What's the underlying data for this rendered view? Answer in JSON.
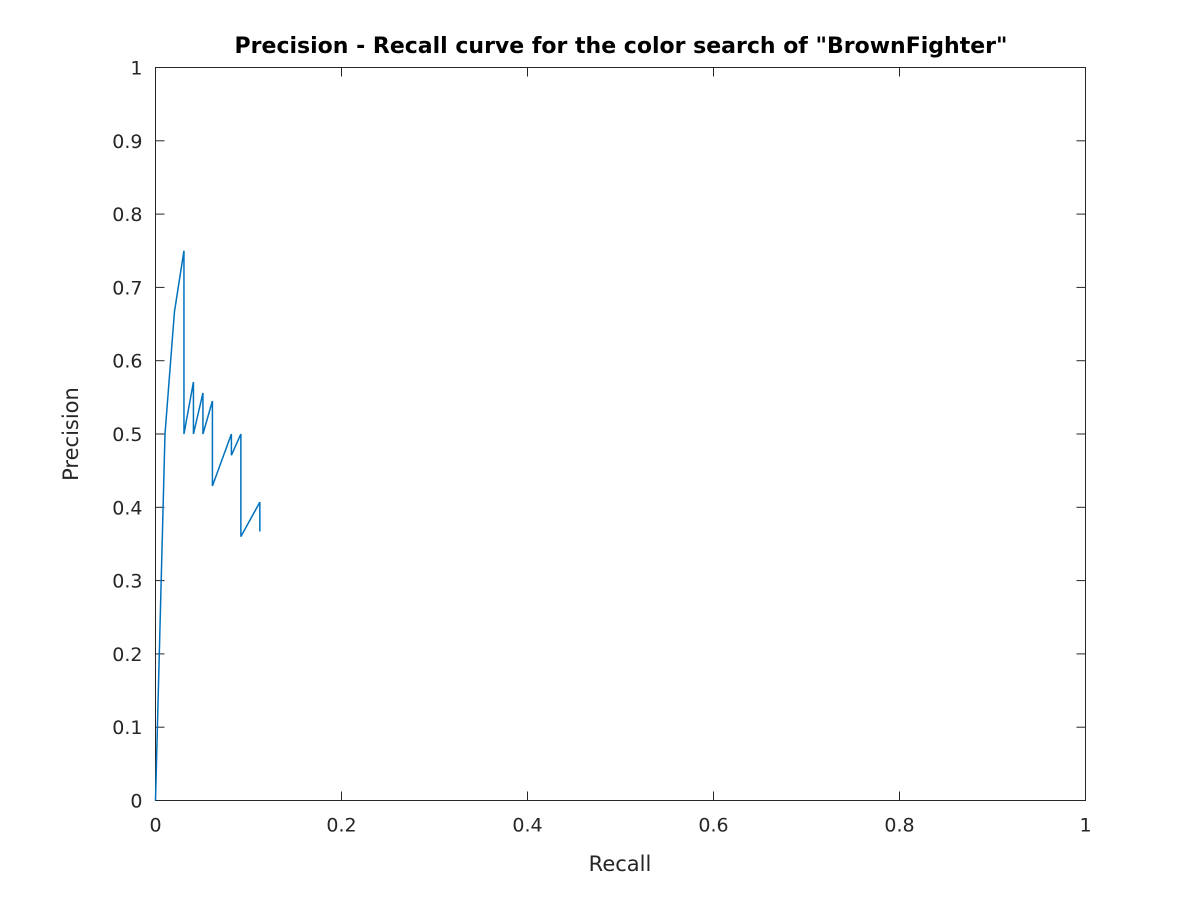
{
  "chart_data": {
    "type": "line",
    "title": "Precision - Recall curve for the color search of \"BrownFighter\"",
    "xlabel": "Recall",
    "ylabel": "Precision",
    "xlim": [
      0,
      1
    ],
    "ylim": [
      0,
      1
    ],
    "xticks": [
      0,
      0.2,
      0.4,
      0.6,
      0.8,
      1
    ],
    "xtick_labels": [
      "0",
      "0.2",
      "0.4",
      "0.6",
      "0.8",
      "1"
    ],
    "yticks": [
      0,
      0.1,
      0.2,
      0.3,
      0.4,
      0.5,
      0.6,
      0.7,
      0.8,
      0.9,
      1
    ],
    "ytick_labels": [
      "0",
      "0.1",
      "0.2",
      "0.3",
      "0.4",
      "0.5",
      "0.6",
      "0.7",
      "0.8",
      "0.9",
      "1"
    ],
    "grid": false,
    "legend": "none",
    "line_color": "#0072BD",
    "axis_color": "#262626",
    "series": [
      {
        "x": [
          0,
          0.0102,
          0.0204,
          0.0306,
          0.0306,
          0.0408,
          0.0408,
          0.051,
          0.051,
          0.0612,
          0.0612,
          0.0816,
          0.0816,
          0.0918,
          0.0918,
          0.1122,
          0.1122
        ],
        "y": [
          0,
          0.5,
          0.667,
          0.75,
          0.5,
          0.571,
          0.5,
          0.556,
          0.5,
          0.545,
          0.429,
          0.5,
          0.471,
          0.5,
          0.36,
          0.407,
          0.367
        ]
      }
    ]
  }
}
